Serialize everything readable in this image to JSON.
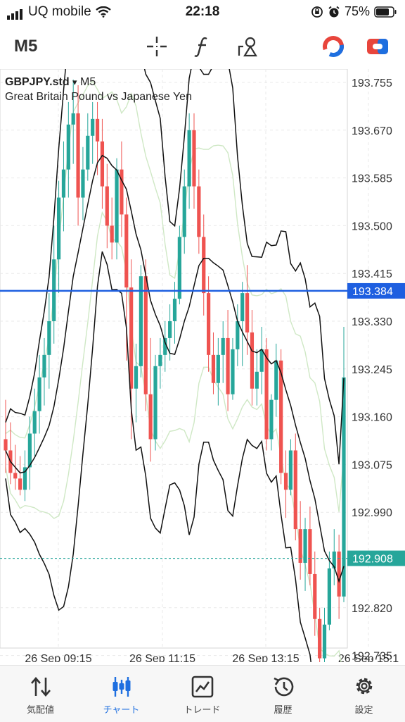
{
  "status_bar": {
    "carrier": "UQ mobile",
    "time": "22:18",
    "battery": "75%"
  },
  "toolbar": {
    "timeframe": "M5",
    "icons": [
      "crosshair-icon",
      "function-icon",
      "objects-icon",
      "trade-icon",
      "switch-icon"
    ]
  },
  "chart": {
    "symbol": "GBPJPY.std",
    "dropdown_marker": "▾",
    "period": "M5",
    "description": "Great Britain Pound vs Japanese Yen",
    "price_labels": [
      "193.755",
      "193.670",
      "193.585",
      "193.500",
      "193.415",
      "193.330",
      "193.245",
      "193.160",
      "193.075",
      "192.990",
      "192.820",
      "192.735"
    ],
    "time_labels": [
      "26 Sep 09:15",
      "26 Sep 11:15",
      "26 Sep 13:15",
      "26 Sep 15:1"
    ],
    "current_price_line": "193.384",
    "bid_price_line": "192.908",
    "colors": {
      "bull": "#26a69a",
      "bear": "#ef5350",
      "price_line": "#1e5fe0",
      "bid_line": "#26a69a",
      "grid": "#e9e9e9",
      "bands": "#111111",
      "envelope": "#cfe8c5"
    }
  },
  "chart_data": {
    "type": "candlestick",
    "symbol": "GBPJPY.std",
    "timeframe": "M5",
    "ylim": [
      192.66,
      193.82
    ],
    "yticks": [
      193.755,
      193.67,
      193.585,
      193.5,
      193.415,
      193.33,
      193.245,
      193.16,
      193.075,
      192.99,
      192.82,
      192.735
    ],
    "xticks": [
      "26 Sep 09:15",
      "26 Sep 11:15",
      "26 Sep 13:15",
      "26 Sep 15:1"
    ],
    "horizontal_lines": [
      {
        "value": 193.384,
        "style": "solid",
        "color": "#1e5fe0"
      },
      {
        "value": 192.908,
        "style": "dashed",
        "color": "#26a69a"
      }
    ],
    "candles": [
      [
        193.12,
        193.19,
        193.06,
        193.1
      ],
      [
        193.1,
        193.15,
        193.04,
        193.06
      ],
      [
        193.06,
        193.11,
        193.03,
        193.05
      ],
      [
        193.05,
        193.09,
        193.02,
        193.03
      ],
      [
        193.03,
        193.1,
        193.01,
        193.07
      ],
      [
        193.07,
        193.16,
        193.03,
        193.13
      ],
      [
        193.13,
        193.21,
        193.09,
        193.17
      ],
      [
        193.17,
        193.27,
        193.13,
        193.23
      ],
      [
        193.23,
        193.3,
        193.18,
        193.27
      ],
      [
        193.27,
        193.38,
        193.21,
        193.33
      ],
      [
        193.33,
        193.5,
        193.29,
        193.44
      ],
      [
        193.44,
        193.58,
        193.38,
        193.55
      ],
      [
        193.55,
        193.65,
        193.49,
        193.6
      ],
      [
        193.6,
        193.72,
        193.55,
        193.68
      ],
      [
        193.68,
        193.76,
        193.61,
        193.7
      ],
      [
        193.7,
        193.75,
        193.5,
        193.55
      ],
      [
        193.55,
        193.64,
        193.51,
        193.6
      ],
      [
        193.6,
        193.7,
        193.58,
        193.66
      ],
      [
        193.66,
        193.72,
        193.61,
        193.69
      ],
      [
        193.69,
        193.72,
        193.59,
        193.65
      ],
      [
        193.65,
        193.69,
        193.53,
        193.57
      ],
      [
        193.57,
        193.61,
        193.46,
        193.5
      ],
      [
        193.5,
        193.55,
        193.44,
        193.47
      ],
      [
        193.47,
        193.62,
        193.44,
        193.6
      ],
      [
        193.6,
        193.65,
        193.48,
        193.52
      ],
      [
        193.52,
        193.55,
        193.26,
        193.39
      ],
      [
        193.39,
        193.44,
        193.12,
        193.21
      ],
      [
        193.21,
        193.29,
        193.15,
        193.25
      ],
      [
        193.25,
        193.43,
        193.23,
        193.41
      ],
      [
        193.41,
        193.44,
        193.17,
        193.2
      ],
      [
        193.2,
        193.3,
        193.08,
        193.12
      ],
      [
        193.12,
        193.27,
        193.1,
        193.25
      ],
      [
        193.25,
        193.3,
        193.21,
        193.27
      ],
      [
        193.27,
        193.33,
        193.24,
        193.3
      ],
      [
        193.3,
        193.36,
        193.26,
        193.33
      ],
      [
        193.33,
        193.4,
        193.29,
        193.37
      ],
      [
        193.37,
        193.5,
        193.36,
        193.48
      ],
      [
        193.48,
        193.6,
        193.45,
        193.57
      ],
      [
        193.57,
        193.7,
        193.53,
        193.67
      ],
      [
        193.67,
        193.7,
        193.53,
        193.57
      ],
      [
        193.57,
        193.6,
        193.45,
        193.48
      ],
      [
        193.48,
        193.52,
        193.34,
        193.38
      ],
      [
        193.38,
        193.41,
        193.24,
        193.27
      ],
      [
        193.27,
        193.31,
        193.2,
        193.22
      ],
      [
        193.22,
        193.3,
        193.18,
        193.27
      ],
      [
        193.27,
        193.33,
        193.22,
        193.3
      ],
      [
        193.3,
        193.35,
        193.17,
        193.2
      ],
      [
        193.2,
        193.3,
        193.19,
        193.28
      ],
      [
        193.28,
        193.36,
        193.25,
        193.33
      ],
      [
        193.33,
        193.4,
        193.25,
        193.38
      ],
      [
        193.38,
        193.43,
        193.27,
        193.31
      ],
      [
        193.31,
        193.35,
        193.18,
        193.21
      ],
      [
        193.21,
        193.28,
        193.18,
        193.24
      ],
      [
        193.24,
        193.32,
        193.2,
        193.28
      ],
      [
        193.28,
        193.3,
        193.1,
        193.12
      ],
      [
        193.12,
        193.2,
        193.1,
        193.19
      ],
      [
        193.19,
        193.29,
        193.16,
        193.26
      ],
      [
        193.26,
        193.28,
        193.04,
        193.06
      ],
      [
        193.06,
        193.1,
        192.98,
        193.03
      ],
      [
        193.03,
        193.12,
        193.02,
        193.1
      ],
      [
        193.1,
        193.13,
        192.94,
        192.96
      ],
      [
        192.96,
        193.01,
        192.87,
        192.9
      ],
      [
        192.9,
        192.98,
        192.85,
        192.96
      ],
      [
        192.96,
        193.0,
        192.86,
        192.88
      ],
      [
        192.88,
        192.92,
        192.77,
        192.8
      ],
      [
        192.8,
        192.82,
        192.7,
        192.73
      ],
      [
        192.73,
        192.82,
        192.69,
        192.79
      ],
      [
        192.79,
        192.92,
        192.78,
        192.89
      ],
      [
        192.89,
        192.96,
        192.86,
        192.92
      ],
      [
        192.92,
        192.95,
        192.8,
        192.84
      ],
      [
        192.84,
        193.32,
        192.83,
        193.23
      ]
    ]
  },
  "tabs": [
    {
      "label": "気配値",
      "icon": "quotes-icon"
    },
    {
      "label": "チャート",
      "icon": "chart-icon"
    },
    {
      "label": "トレード",
      "icon": "trade-tab-icon"
    },
    {
      "label": "履歴",
      "icon": "history-icon"
    },
    {
      "label": "設定",
      "icon": "settings-icon"
    }
  ],
  "active_tab": "チャート"
}
